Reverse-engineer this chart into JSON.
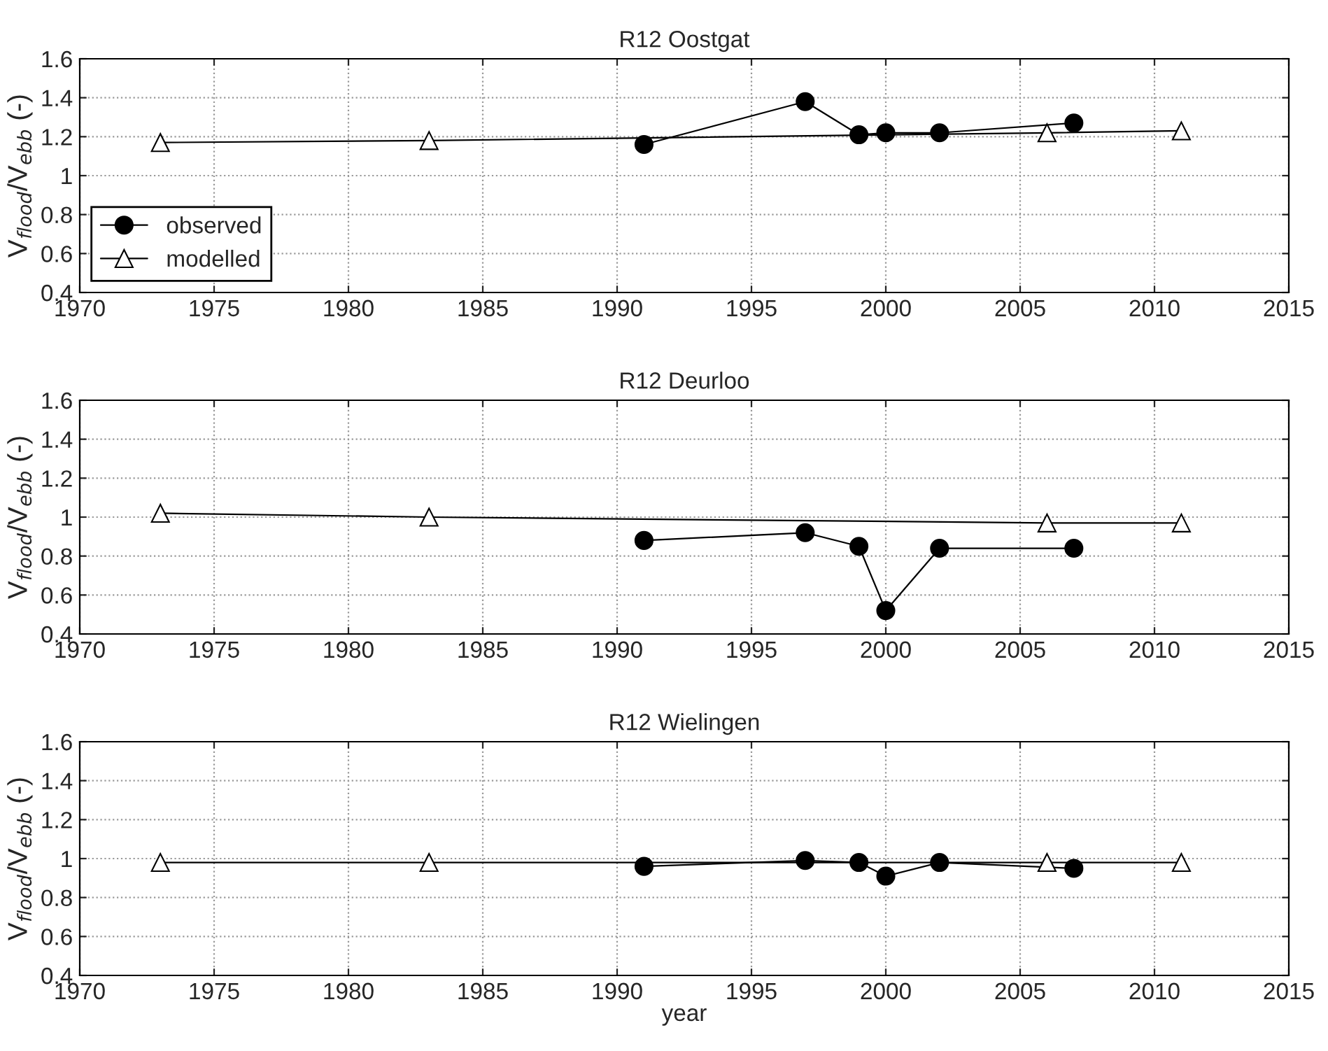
{
  "chart_data": [
    {
      "type": "line",
      "title": "R12 Oostgat",
      "ylabel": "V$_{flood}$/V$_{ebb}$ (-)",
      "xlim": [
        1970,
        2015
      ],
      "xticks": [
        1970,
        1975,
        1980,
        1985,
        1990,
        1995,
        2000,
        2005,
        2010,
        2015
      ],
      "ylim": [
        0.4,
        1.6
      ],
      "yticks": [
        0.4,
        0.6,
        0.8,
        1,
        1.2,
        1.4,
        1.6
      ],
      "grid": true,
      "legend": "bottom left",
      "series": [
        {
          "name": "observed",
          "color": "#000000",
          "marker": "circle",
          "x": [
            1991,
            1997,
            1999,
            2000,
            2002,
            2007
          ],
          "values": [
            1.16,
            1.38,
            1.21,
            1.22,
            1.22,
            1.27
          ]
        },
        {
          "name": "modelled",
          "color": "#000000",
          "marker": "triangle",
          "x": [
            1973,
            1983,
            2006,
            2011
          ],
          "values": [
            1.17,
            1.18,
            1.22,
            1.23
          ]
        }
      ]
    },
    {
      "type": "line",
      "title": "R12 Deurloo",
      "ylabel": "V$_{flood}$/V$_{ebb}$ (-)",
      "xlim": [
        1970,
        2015
      ],
      "xticks": [
        1970,
        1975,
        1980,
        1985,
        1990,
        1995,
        2000,
        2005,
        2010,
        2015
      ],
      "ylim": [
        0.4,
        1.6
      ],
      "yticks": [
        0.4,
        0.6,
        0.8,
        1,
        1.2,
        1.4,
        1.6
      ],
      "grid": true,
      "series": [
        {
          "color": "#000000",
          "marker": "circle",
          "x": [
            1991,
            1997,
            1999,
            2000,
            2002,
            2007
          ],
          "values": [
            0.88,
            0.92,
            0.85,
            0.52,
            0.84,
            0.84
          ]
        },
        {
          "color": "#000000",
          "marker": "triangle",
          "x": [
            1973,
            1983,
            2006,
            2011
          ],
          "values": [
            1.02,
            1.0,
            0.97,
            0.97
          ]
        }
      ]
    },
    {
      "type": "line",
      "title": "R12 Wielingen",
      "xlabel": "year",
      "ylabel": "V$_{flood}$/V$_{ebb}$ (-)",
      "xlim": [
        1970,
        2015
      ],
      "xticks": [
        1970,
        1975,
        1980,
        1985,
        1990,
        1995,
        2000,
        2005,
        2010,
        2015
      ],
      "ylim": [
        0.4,
        1.6
      ],
      "yticks": [
        0.4,
        0.6,
        0.8,
        1,
        1.2,
        1.4,
        1.6
      ],
      "grid": true,
      "series": [
        {
          "color": "#000000",
          "marker": "circle",
          "x": [
            1991,
            1997,
            1999,
            2000,
            2002,
            2007
          ],
          "values": [
            0.96,
            0.99,
            0.98,
            0.91,
            0.98,
            0.95
          ]
        },
        {
          "color": "#000000",
          "marker": "triangle",
          "x": [
            1973,
            1983,
            2006,
            2011
          ],
          "values": [
            0.98,
            0.98,
            0.98,
            0.98
          ]
        }
      ]
    }
  ]
}
